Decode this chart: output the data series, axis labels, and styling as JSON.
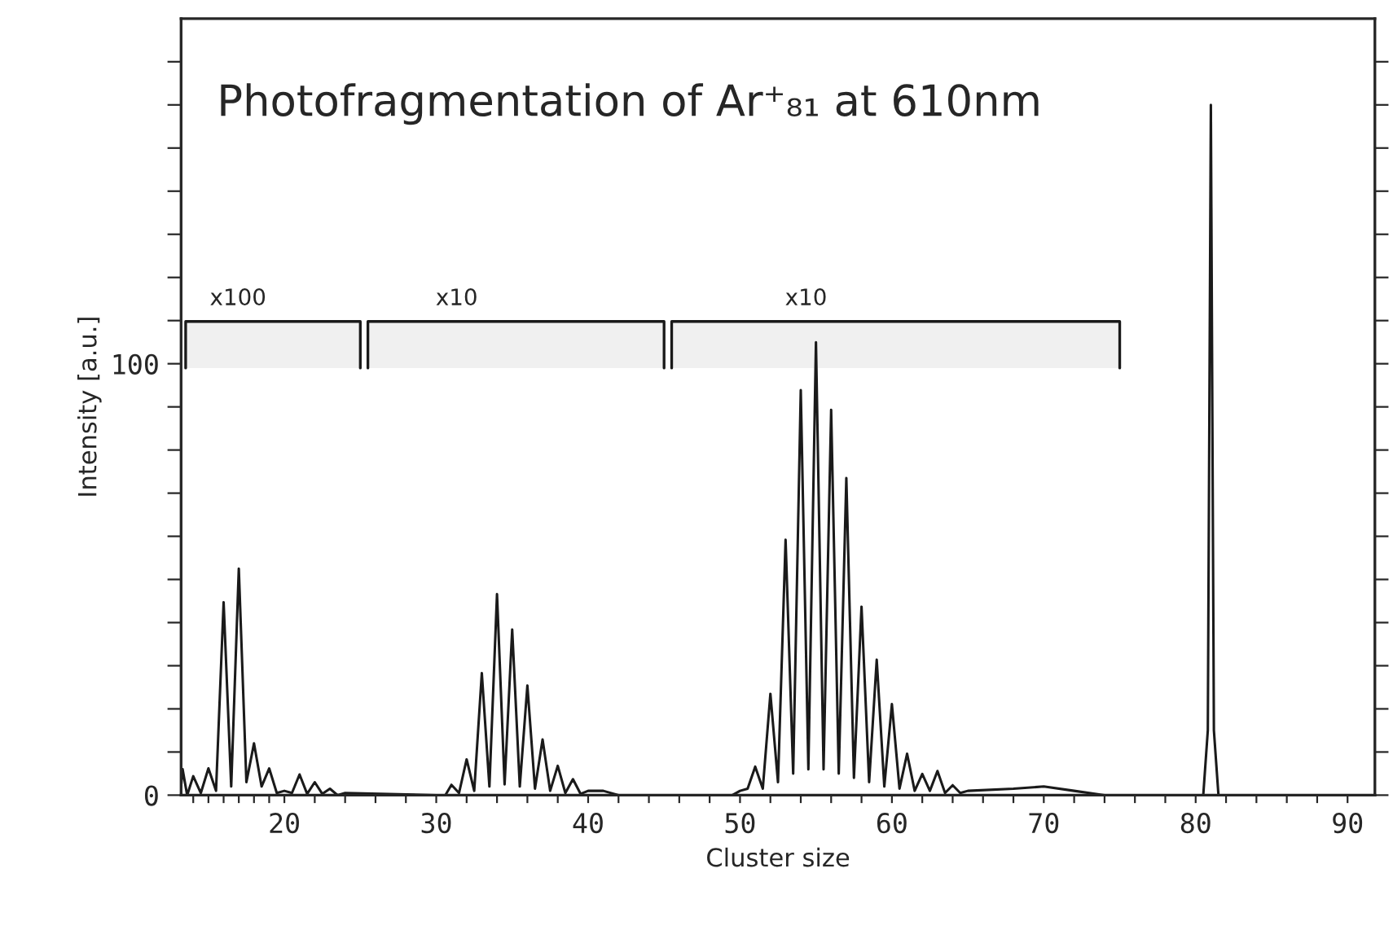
{
  "chart_data": {
    "type": "line",
    "title": "Photofragmentation of Ar⁺₈₁ at 610nm",
    "xlabel": "Cluster size",
    "ylabel": "Intensity [a.u.]",
    "series": [
      {
        "color": "#1a1a1a",
        "x": [
          13.2,
          13.3,
          13.6,
          14,
          14.5,
          15,
          15.5,
          16,
          16.5,
          17,
          17.5,
          18,
          18.5,
          19,
          19.5,
          20,
          20.5,
          21,
          21.5,
          22,
          22.5,
          23,
          23.5,
          24,
          30,
          30.6,
          31,
          31.5,
          32,
          32.5,
          33,
          33.5,
          34,
          34.5,
          35,
          35.5,
          36,
          36.5,
          37,
          37.5,
          38,
          38.5,
          39,
          39.5,
          40,
          41,
          42,
          49.5,
          50,
          50.5,
          51,
          51.5,
          52,
          52.5,
          53,
          53.5,
          54,
          54.5,
          55,
          55.5,
          56,
          56.5,
          57,
          57.5,
          58,
          58.5,
          59,
          59.5,
          60,
          60.5,
          61,
          61.5,
          62,
          62.5,
          63,
          63.5,
          64,
          64.5,
          65,
          68,
          70,
          72,
          74,
          78,
          80.5,
          80.8,
          81,
          81.2,
          81.5,
          85,
          91.8
        ],
        "values": [
          2,
          6,
          0,
          4.4,
          0.5,
          6.2,
          1,
          44.7,
          2,
          52.5,
          3,
          12,
          2,
          6.2,
          0.5,
          1,
          0.5,
          4.8,
          0.3,
          3,
          0.3,
          1.5,
          0,
          0.5,
          0,
          0,
          2.4,
          0.5,
          8.3,
          1,
          28.3,
          2,
          46.6,
          2.5,
          38.4,
          2,
          25.4,
          1.5,
          12.9,
          1,
          6.8,
          0.5,
          3.7,
          0.3,
          1,
          1,
          0,
          0,
          1,
          1.5,
          6.6,
          1.5,
          23.5,
          3,
          59.2,
          5,
          93.9,
          6,
          105,
          6,
          89.3,
          5,
          73.5,
          4,
          43.7,
          3,
          31.4,
          2,
          21.1,
          1.5,
          9.6,
          1,
          4.9,
          1,
          5.6,
          0.5,
          2.3,
          0.5,
          1,
          1.5,
          2,
          1,
          0,
          0,
          0,
          15,
          160,
          15,
          0,
          0,
          0
        ]
      }
    ],
    "xlim": [
      13.2,
      91.8
    ],
    "xticks": [
      {
        "value": 14,
        "label": null
      },
      {
        "value": 15,
        "label": null
      },
      {
        "value": 16,
        "label": null
      },
      {
        "value": 17,
        "label": null
      },
      {
        "value": 18,
        "label": null
      },
      {
        "value": 19,
        "label": null
      },
      {
        "value": 20,
        "label": "20"
      },
      {
        "value": 22,
        "label": null
      },
      {
        "value": 24,
        "label": null
      },
      {
        "value": 26,
        "label": null
      },
      {
        "value": 28,
        "label": null
      },
      {
        "value": 30,
        "label": "30"
      },
      {
        "value": 32,
        "label": null
      },
      {
        "value": 34,
        "label": null
      },
      {
        "value": 36,
        "label": null
      },
      {
        "value": 38,
        "label": null
      },
      {
        "value": 40,
        "label": "40"
      },
      {
        "value": 42,
        "label": null
      },
      {
        "value": 44,
        "label": null
      },
      {
        "value": 46,
        "label": null
      },
      {
        "value": 48,
        "label": null
      },
      {
        "value": 50,
        "label": "50"
      },
      {
        "value": 52,
        "label": null
      },
      {
        "value": 54,
        "label": null
      },
      {
        "value": 56,
        "label": null
      },
      {
        "value": 58,
        "label": null
      },
      {
        "value": 60,
        "label": "60"
      },
      {
        "value": 62,
        "label": null
      },
      {
        "value": 64,
        "label": null
      },
      {
        "value": 66,
        "label": null
      },
      {
        "value": 68,
        "label": null
      },
      {
        "value": 70,
        "label": "70"
      },
      {
        "value": 72,
        "label": null
      },
      {
        "value": 74,
        "label": null
      },
      {
        "value": 76,
        "label": null
      },
      {
        "value": 78,
        "label": null
      },
      {
        "value": 80,
        "label": "80"
      },
      {
        "value": 82,
        "label": null
      },
      {
        "value": 84,
        "label": null
      },
      {
        "value": 86,
        "label": null
      },
      {
        "value": 88,
        "label": null
      },
      {
        "value": 90,
        "label": "90"
      }
    ],
    "ylim": [
      0,
      180
    ],
    "yticks": [
      0,
      {
        "value": 10,
        "label": null
      },
      {
        "value": 20,
        "label": null
      },
      {
        "value": 30,
        "label": null
      },
      {
        "value": 40,
        "label": null
      },
      {
        "value": 50,
        "label": null
      },
      {
        "value": 60,
        "label": null
      },
      {
        "value": 70,
        "label": null
      },
      {
        "value": 80,
        "label": null
      },
      {
        "value": 90,
        "label": null
      },
      100,
      {
        "value": 110,
        "label": null
      },
      {
        "value": 120,
        "label": null
      },
      {
        "value": 130,
        "label": null
      },
      {
        "value": 140,
        "label": null
      },
      {
        "value": 150,
        "label": null
      },
      {
        "value": 160,
        "label": null
      },
      {
        "value": 170,
        "label": null
      }
    ],
    "bands": [
      {
        "axis": "x",
        "from": 13.5,
        "to": 25,
        "label": "x100"
      },
      {
        "axis": "x",
        "from": 25.5,
        "to": 45,
        "label": "x10"
      },
      {
        "axis": "x",
        "from": 45.5,
        "to": 75,
        "label": "x10"
      }
    ],
    "grid": false,
    "marker": "none",
    "line_style": "solid"
  }
}
